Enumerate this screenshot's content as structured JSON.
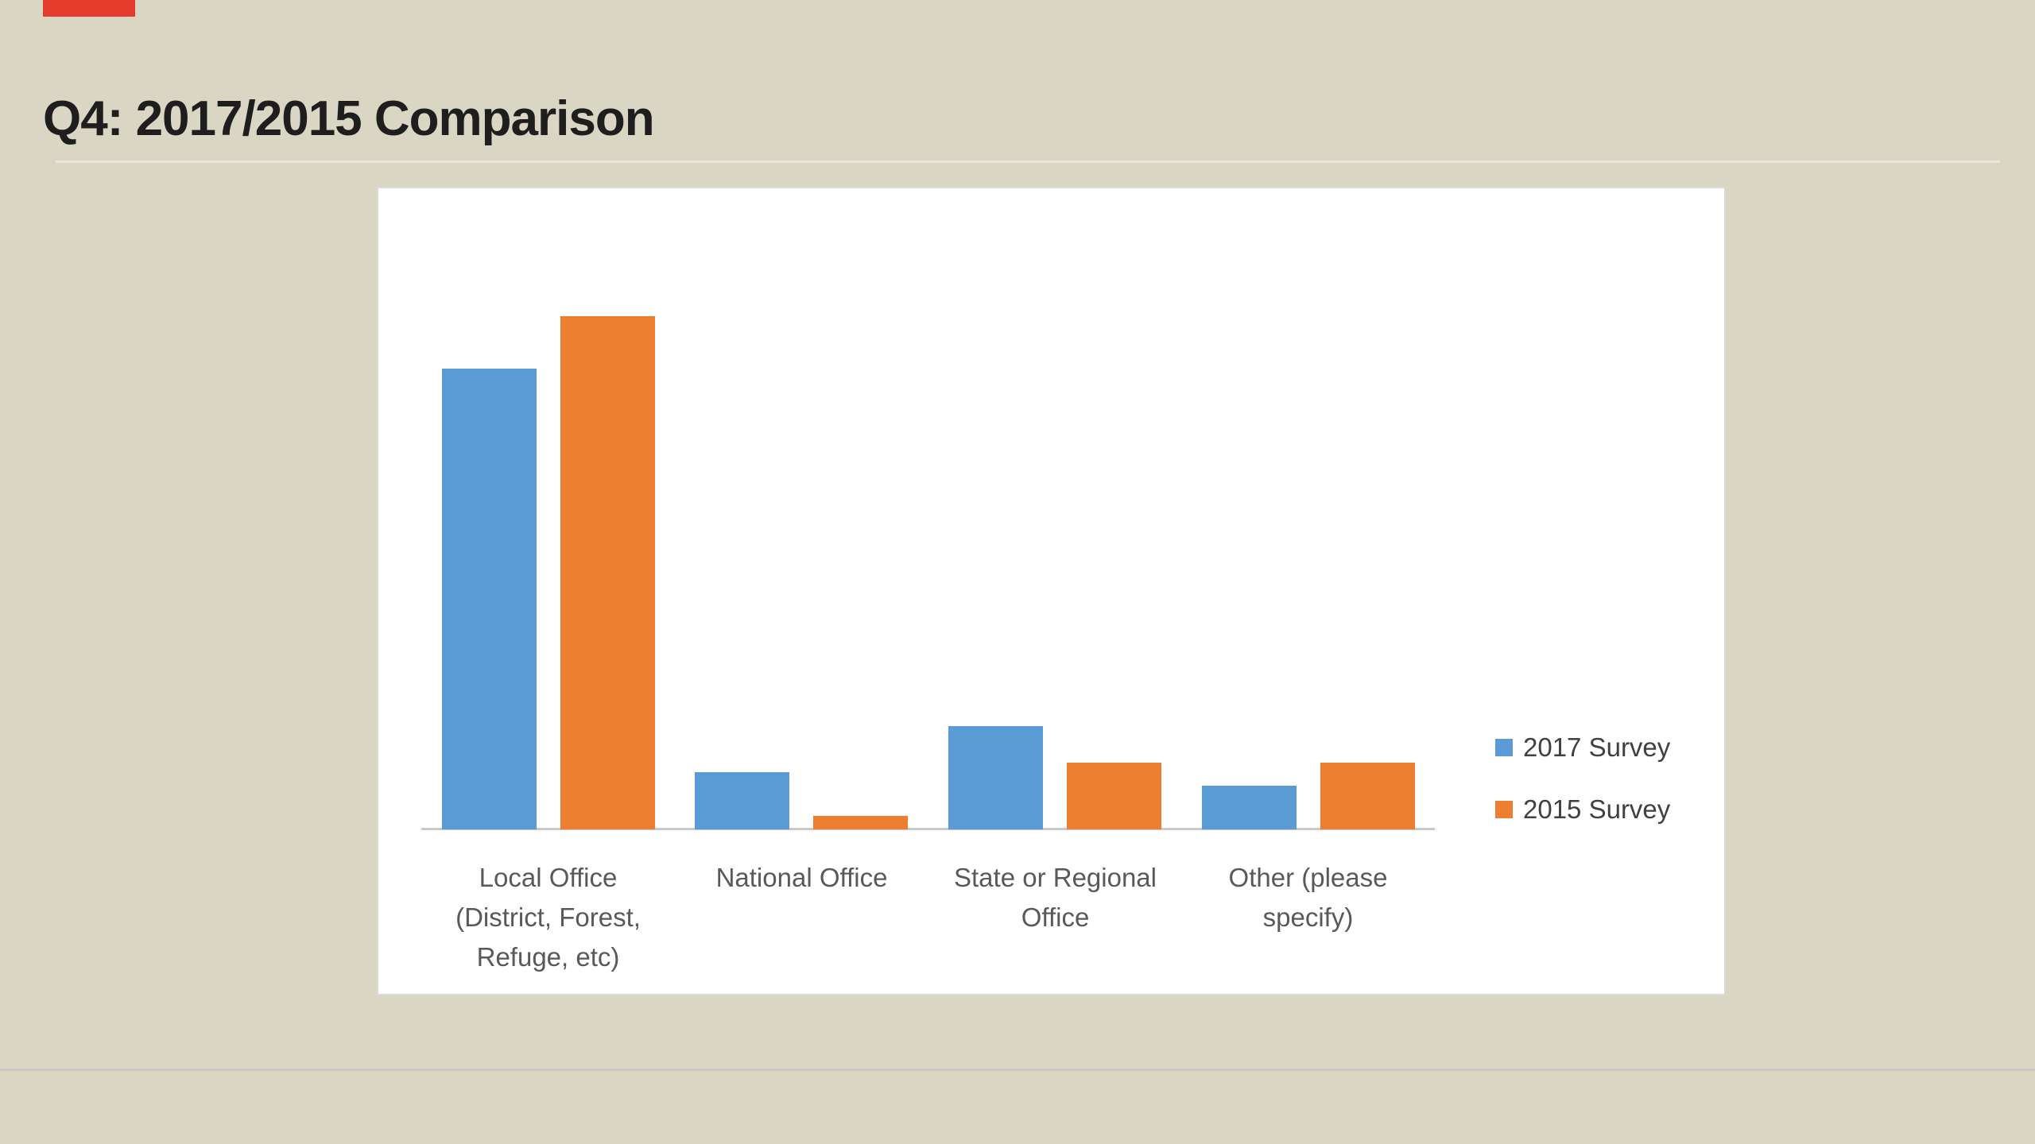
{
  "slide": {
    "title": "Q4: 2017/2015 Comparison"
  },
  "chart_data": {
    "type": "bar",
    "title": "",
    "xlabel": "",
    "ylabel": "",
    "categories": [
      "Local Office (District, Forest, Refuge, etc)",
      "National Office",
      "State or Regional Office",
      "Other (please specify)"
    ],
    "category_label_lines": [
      [
        "Local Office",
        "(District, Forest,",
        "Refuge, etc)"
      ],
      [
        "National Office"
      ],
      [
        "State or Regional",
        "Office"
      ],
      [
        "Other (please",
        "specify)"
      ]
    ],
    "series": [
      {
        "name": "2017 Survey",
        "color": "#5b9bd5",
        "values": [
          70,
          8.7,
          15.7,
          6.6
        ]
      },
      {
        "name": "2015 Survey",
        "color": "#ed7d31",
        "values": [
          78,
          2,
          10.1,
          10.1
        ]
      }
    ],
    "values_note": "y-axis has no tick labels; values estimated as percentages from bar heights",
    "ylim": [
      0,
      97
    ],
    "grid": false,
    "legend_position": "right"
  },
  "colors": {
    "background": "#d9d6c3",
    "panel": "#ffffff",
    "panel_border": "#d9d9d9",
    "axis_line": "#c9c9c9",
    "title_text": "#1f1e1e",
    "category_text": "#595959",
    "legend_text": "#404040",
    "title_divider": "#eae8dc",
    "footer_divider": "#c9c7c3",
    "top_left_marker": "#e43b2c"
  }
}
